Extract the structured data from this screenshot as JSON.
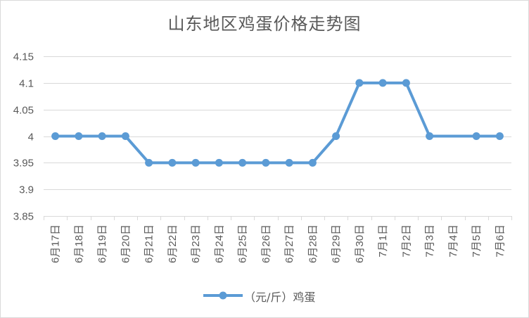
{
  "chart_data": {
    "type": "line",
    "title": "山东地区鸡蛋价格走势图",
    "categories": [
      "6月17日",
      "6月18日",
      "6月19日",
      "6月20日",
      "6月21日",
      "6月22日",
      "6月23日",
      "6月24日",
      "6月25日",
      "6月26日",
      "6月27日",
      "6月28日",
      "6月29日",
      "6月30日",
      "7月1日",
      "7月2日",
      "7月3日",
      "7月4日",
      "7月5日",
      "7月6日"
    ],
    "series": [
      {
        "name": "（元/斤）鸡蛋",
        "values": [
          4,
          4,
          4,
          4,
          3.95,
          3.95,
          3.95,
          3.95,
          3.95,
          3.95,
          3.95,
          3.95,
          4,
          4.1,
          4.1,
          4.1,
          4,
          4,
          4,
          4
        ],
        "marker_indices": [
          0,
          1,
          2,
          3,
          4,
          5,
          6,
          7,
          8,
          9,
          10,
          11,
          12,
          13,
          14,
          15,
          16,
          18,
          19
        ]
      }
    ],
    "ylim": [
      3.85,
      4.15
    ],
    "yticks": [
      "4.15",
      "4.1",
      "4.05",
      "4",
      "3.95",
      "3.9",
      "3.85"
    ],
    "ytick_values": [
      4.15,
      4.1,
      4.05,
      4,
      3.95,
      3.9,
      3.85
    ],
    "grid": true,
    "legend_position": "bottom",
    "line_color": "#5b9bd5",
    "grid_color": "#d9d9d9"
  }
}
